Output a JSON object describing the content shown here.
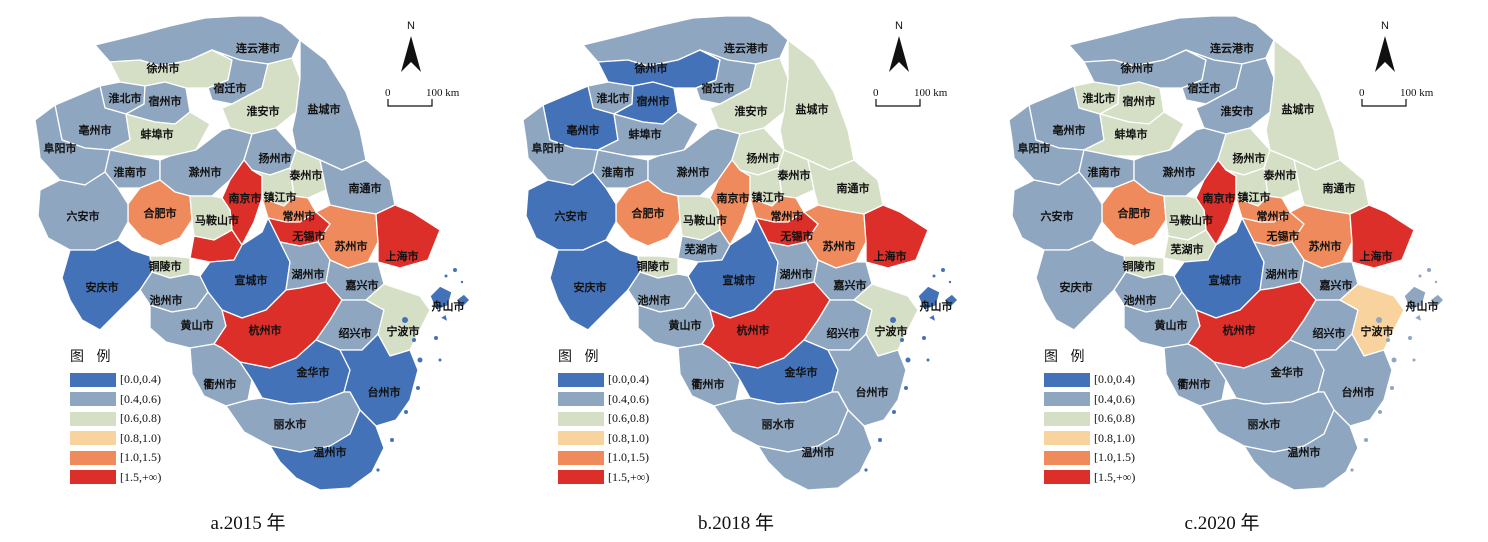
{
  "north_label": "N",
  "scale": {
    "zero": "0",
    "end": "100 km"
  },
  "legend": {
    "title": "图 例",
    "classes": [
      {
        "label": "[0.0,0.4)",
        "color": "#4472b8"
      },
      {
        "label": "[0.4,0.6)",
        "color": "#8fa6c1"
      },
      {
        "label": "[0.6,0.8)",
        "color": "#d5dfc5"
      },
      {
        "label": "[0.8,1.0)",
        "color": "#f8d39d"
      },
      {
        "label": "[1.0,1.5)",
        "color": "#ee8a5b"
      },
      {
        "label": "[1.5,+∞)",
        "color": "#dc2f2a"
      }
    ]
  },
  "cities": [
    "连云港市",
    "徐州市",
    "宿迁市",
    "淮北市",
    "宿州市",
    "淮安市",
    "盐城市",
    "亳州市",
    "蚌埠市",
    "阜阳市",
    "淮南市",
    "滁州市",
    "扬州市",
    "泰州市",
    "南通市",
    "南京市",
    "镇江市",
    "合肥市",
    "马鞍山市",
    "常州市",
    "六安市",
    "无锡市",
    "苏州市",
    "上海市",
    "芜湖市",
    "铜陵市",
    "宣城市",
    "湖州市",
    "嘉兴市",
    "安庆市",
    "池州市",
    "舟山市",
    "黄山市",
    "杭州市",
    "绍兴市",
    "宁波市",
    "衢州市",
    "金华市",
    "台州市",
    "丽水市",
    "温州市"
  ],
  "panels": [
    {
      "caption": "a.2015 年",
      "classes": {
        "连云港市": 1,
        "徐州市": 2,
        "宿迁市": 1,
        "淮北市": 1,
        "宿州市": 1,
        "淮安市": 2,
        "盐城市": 1,
        "亳州市": 1,
        "蚌埠市": 2,
        "阜阳市": 1,
        "淮南市": 1,
        "滁州市": 1,
        "扬州市": 1,
        "泰州市": 2,
        "南通市": 1,
        "南京市": 5,
        "镇江市": 2,
        "合肥市": 4,
        "马鞍山市": 2,
        "常州市": 4,
        "六安市": 1,
        "无锡市": 5,
        "苏州市": 4,
        "上海市": 5,
        "芜湖市": 5,
        "铜陵市": 2,
        "宣城市": 0,
        "湖州市": 1,
        "嘉兴市": 1,
        "安庆市": 0,
        "池州市": 1,
        "舟山市": 0,
        "黄山市": 1,
        "杭州市": 5,
        "绍兴市": 1,
        "宁波市": 2,
        "衢州市": 1,
        "金华市": 0,
        "台州市": 0,
        "丽水市": 1,
        "温州市": 0
      },
      "hidden_labels": [
        "芜湖市"
      ]
    },
    {
      "caption": "b.2018 年",
      "classes": {
        "连云港市": 1,
        "徐州市": 0,
        "宿迁市": 1,
        "淮北市": 1,
        "宿州市": 0,
        "淮安市": 2,
        "盐城市": 2,
        "亳州市": 0,
        "蚌埠市": 1,
        "阜阳市": 1,
        "淮南市": 1,
        "滁州市": 1,
        "扬州市": 2,
        "泰州市": 2,
        "南通市": 2,
        "南京市": 4,
        "镇江市": 2,
        "合肥市": 4,
        "马鞍山市": 2,
        "常州市": 4,
        "六安市": 0,
        "无锡市": 5,
        "苏州市": 4,
        "上海市": 5,
        "芜湖市": 1,
        "铜陵市": 2,
        "宣城市": 0,
        "湖州市": 1,
        "嘉兴市": 1,
        "安庆市": 0,
        "池州市": 1,
        "舟山市": 0,
        "黄山市": 1,
        "杭州市": 5,
        "绍兴市": 1,
        "宁波市": 2,
        "衢州市": 1,
        "金华市": 0,
        "台州市": 1,
        "丽水市": 1,
        "温州市": 1
      },
      "hidden_labels": []
    },
    {
      "caption": "c.2020 年",
      "classes": {
        "连云港市": 1,
        "徐州市": 1,
        "宿迁市": 1,
        "淮北市": 2,
        "宿州市": 2,
        "淮安市": 1,
        "盐城市": 2,
        "亳州市": 1,
        "蚌埠市": 2,
        "阜阳市": 1,
        "淮南市": 1,
        "滁州市": 1,
        "扬州市": 2,
        "泰州市": 2,
        "南通市": 2,
        "南京市": 5,
        "镇江市": 2,
        "合肥市": 4,
        "马鞍山市": 2,
        "常州市": 4,
        "六安市": 1,
        "无锡市": 4,
        "苏州市": 4,
        "上海市": 5,
        "芜湖市": 2,
        "铜陵市": 2,
        "宣城市": 0,
        "湖州市": 1,
        "嘉兴市": 1,
        "安庆市": 1,
        "池州市": 1,
        "舟山市": 1,
        "黄山市": 1,
        "杭州市": 5,
        "绍兴市": 1,
        "宁波市": 3,
        "衢州市": 1,
        "金华市": 1,
        "台州市": 1,
        "丽水市": 1,
        "温州市": 1
      },
      "hidden_labels": []
    }
  ]
}
